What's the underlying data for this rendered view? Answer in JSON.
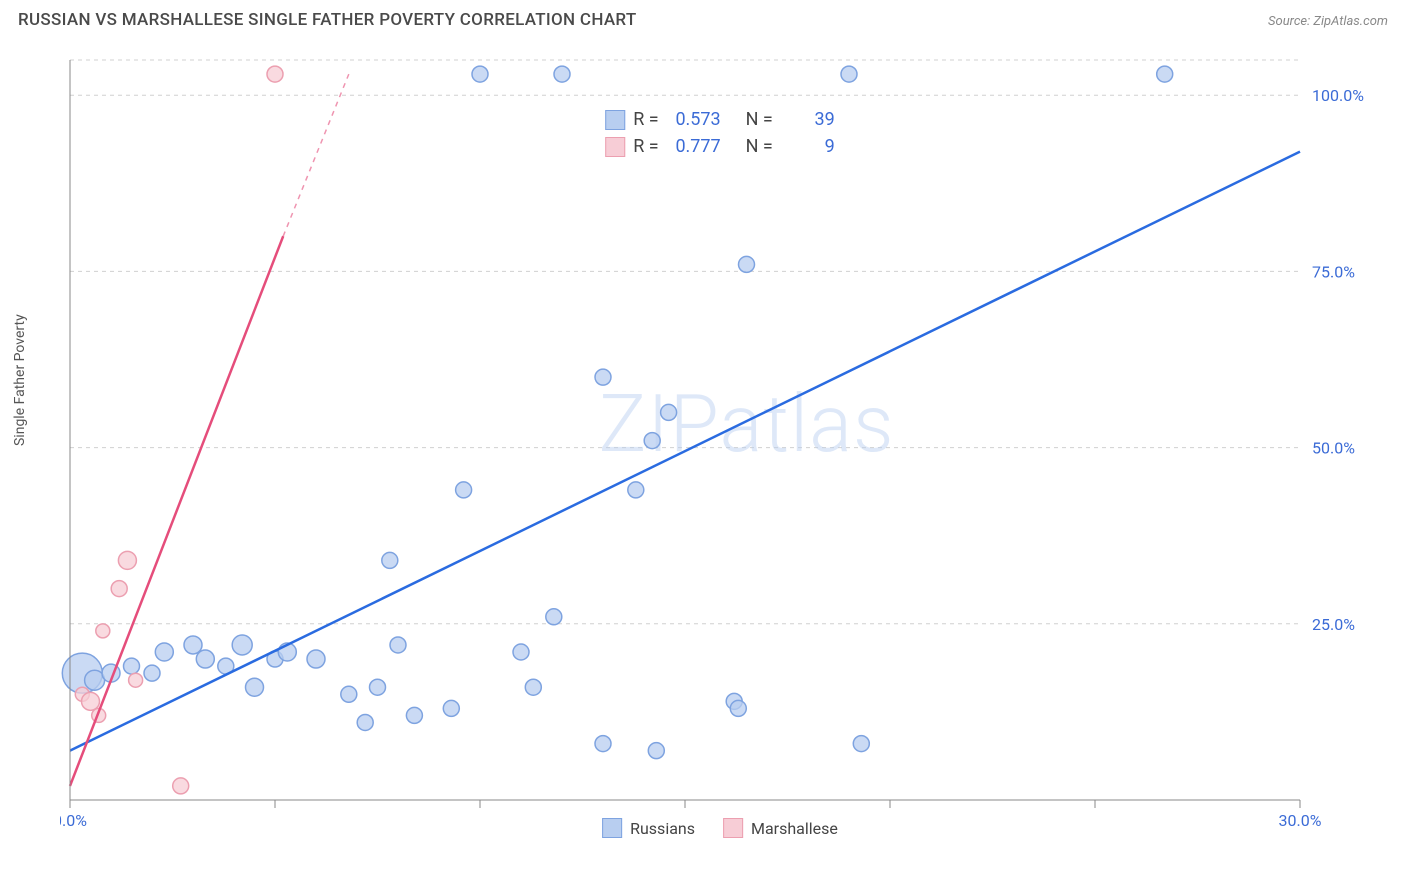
{
  "title": "RUSSIAN VS MARSHALLESE SINGLE FATHER POVERTY CORRELATION CHART",
  "source": "Source: ZipAtlas.com",
  "ylabel": "Single Father Poverty",
  "watermark": "ZIPatlas",
  "chart": {
    "xlim": [
      0,
      30
    ],
    "ylim": [
      0,
      105
    ],
    "xtick_labels": [
      {
        "x": 0,
        "label": "0.0%"
      },
      {
        "x": 30,
        "label": "30.0%"
      }
    ],
    "xticks_minor": [
      5,
      10,
      15,
      20,
      25
    ],
    "ytick_labels": [
      {
        "y": 25,
        "label": "25.0%"
      },
      {
        "y": 50,
        "label": "50.0%"
      },
      {
        "y": 75,
        "label": "75.0%"
      },
      {
        "y": 100,
        "label": "100.0%"
      }
    ],
    "grid_color": "#d0d0d0",
    "background": "#ffffff",
    "series": [
      {
        "name": "Russians",
        "color_fill": "#b8cef0",
        "color_stroke": "#7ea3e0",
        "line_color": "#2a6be0",
        "r_value": "0.573",
        "n_value": "39",
        "trend": {
          "x1": 0,
          "y1": 7,
          "x2": 30,
          "y2": 92,
          "dash_after_x": 30
        },
        "points": [
          {
            "x": 0.3,
            "y": 18,
            "r": 20
          },
          {
            "x": 0.6,
            "y": 17,
            "r": 10
          },
          {
            "x": 1.0,
            "y": 18,
            "r": 9
          },
          {
            "x": 1.5,
            "y": 19,
            "r": 8
          },
          {
            "x": 2.0,
            "y": 18,
            "r": 8
          },
          {
            "x": 2.3,
            "y": 21,
            "r": 9
          },
          {
            "x": 3.0,
            "y": 22,
            "r": 9
          },
          {
            "x": 3.3,
            "y": 20,
            "r": 9
          },
          {
            "x": 3.8,
            "y": 19,
            "r": 8
          },
          {
            "x": 4.2,
            "y": 22,
            "r": 10
          },
          {
            "x": 4.5,
            "y": 16,
            "r": 9
          },
          {
            "x": 5.0,
            "y": 20,
            "r": 8
          },
          {
            "x": 5.3,
            "y": 21,
            "r": 9
          },
          {
            "x": 6.0,
            "y": 20,
            "r": 9
          },
          {
            "x": 6.8,
            "y": 15,
            "r": 8
          },
          {
            "x": 7.2,
            "y": 11,
            "r": 8
          },
          {
            "x": 7.5,
            "y": 16,
            "r": 8
          },
          {
            "x": 7.8,
            "y": 34,
            "r": 8
          },
          {
            "x": 8.0,
            "y": 22,
            "r": 8
          },
          {
            "x": 8.4,
            "y": 12,
            "r": 8
          },
          {
            "x": 9.3,
            "y": 13,
            "r": 8
          },
          {
            "x": 9.6,
            "y": 44,
            "r": 8
          },
          {
            "x": 10.0,
            "y": 103,
            "r": 8
          },
          {
            "x": 11.0,
            "y": 21,
            "r": 8
          },
          {
            "x": 11.3,
            "y": 16,
            "r": 8
          },
          {
            "x": 11.8,
            "y": 26,
            "r": 8
          },
          {
            "x": 12.0,
            "y": 103,
            "r": 8
          },
          {
            "x": 13.0,
            "y": 60,
            "r": 8
          },
          {
            "x": 13.0,
            "y": 8,
            "r": 8
          },
          {
            "x": 13.8,
            "y": 44,
            "r": 8
          },
          {
            "x": 14.2,
            "y": 51,
            "r": 8
          },
          {
            "x": 14.3,
            "y": 7,
            "r": 8
          },
          {
            "x": 14.6,
            "y": 55,
            "r": 8
          },
          {
            "x": 16.5,
            "y": 76,
            "r": 8
          },
          {
            "x": 16.2,
            "y": 14,
            "r": 8
          },
          {
            "x": 16.3,
            "y": 13,
            "r": 8
          },
          {
            "x": 19.0,
            "y": 103,
            "r": 8
          },
          {
            "x": 19.3,
            "y": 8,
            "r": 8
          },
          {
            "x": 26.7,
            "y": 103,
            "r": 8
          }
        ]
      },
      {
        "name": "Marshallese",
        "color_fill": "#f7cdd6",
        "color_stroke": "#ec9fb0",
        "line_color": "#e54d7b",
        "r_value": "0.777",
        "n_value": "9",
        "trend": {
          "x1": 0,
          "y1": 2,
          "x2": 5.2,
          "y2": 80,
          "dash_after_x": 5.2,
          "x2_dash": 6.8,
          "y2_dash": 103
        },
        "points": [
          {
            "x": 0.3,
            "y": 15,
            "r": 7
          },
          {
            "x": 0.5,
            "y": 14,
            "r": 9
          },
          {
            "x": 0.7,
            "y": 12,
            "r": 7
          },
          {
            "x": 0.8,
            "y": 24,
            "r": 7
          },
          {
            "x": 1.2,
            "y": 30,
            "r": 8
          },
          {
            "x": 1.4,
            "y": 34,
            "r": 9
          },
          {
            "x": 1.6,
            "y": 17,
            "r": 7
          },
          {
            "x": 2.7,
            "y": 2,
            "r": 8
          },
          {
            "x": 5.0,
            "y": 103,
            "r": 8
          }
        ]
      }
    ]
  },
  "legend_bottom": [
    {
      "label": "Russians",
      "fill": "#b8cef0",
      "stroke": "#7ea3e0"
    },
    {
      "label": "Marshallese",
      "fill": "#f7cdd6",
      "stroke": "#ec9fb0"
    }
  ]
}
